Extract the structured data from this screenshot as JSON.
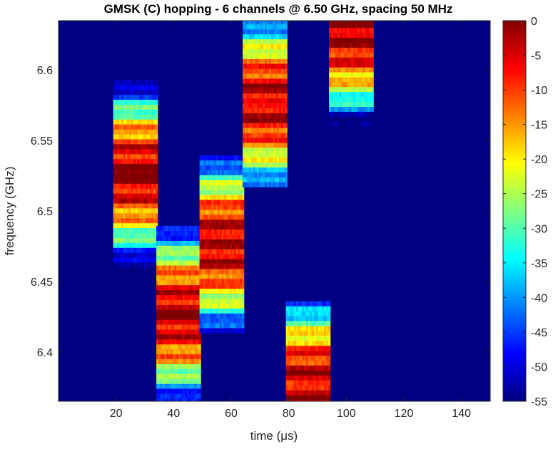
{
  "chart_data": {
    "type": "heatmap",
    "title": "GMSK (C) hopping - 6 channels @ 6.50 GHz, spacing 50 MHz",
    "xlabel": "time (μs)",
    "ylabel": "frequency (GHz)",
    "xlim": [
      0,
      150
    ],
    "ylim": [
      6.365,
      6.635
    ],
    "xticks": [
      20,
      40,
      60,
      80,
      100,
      120,
      140
    ],
    "yticks": [
      6.4,
      6.45,
      6.5,
      6.55,
      6.6
    ],
    "yticklabels": [
      "6.4",
      "6.45",
      "6.5",
      "6.55",
      "6.6"
    ],
    "colorbar": {
      "range": [
        -55,
        0
      ],
      "ticks": [
        0,
        -5,
        -10,
        -15,
        -20,
        -25,
        -30,
        -35,
        -40,
        -45,
        -50,
        -55
      ],
      "colormap": "jet"
    },
    "background_level": -55,
    "hops": [
      {
        "t_start": 19,
        "t_end": 34,
        "center_ghz": 6.525
      },
      {
        "t_start": 34,
        "t_end": 49,
        "center_ghz": 6.425
      },
      {
        "t_start": 49,
        "t_end": 64,
        "center_ghz": 6.475
      },
      {
        "t_start": 64,
        "t_end": 79,
        "center_ghz": 6.575
      },
      {
        "t_start": 79,
        "t_end": 94,
        "center_ghz": 6.375
      },
      {
        "t_start": 94,
        "t_end": 109,
        "center_ghz": 6.625
      }
    ]
  }
}
